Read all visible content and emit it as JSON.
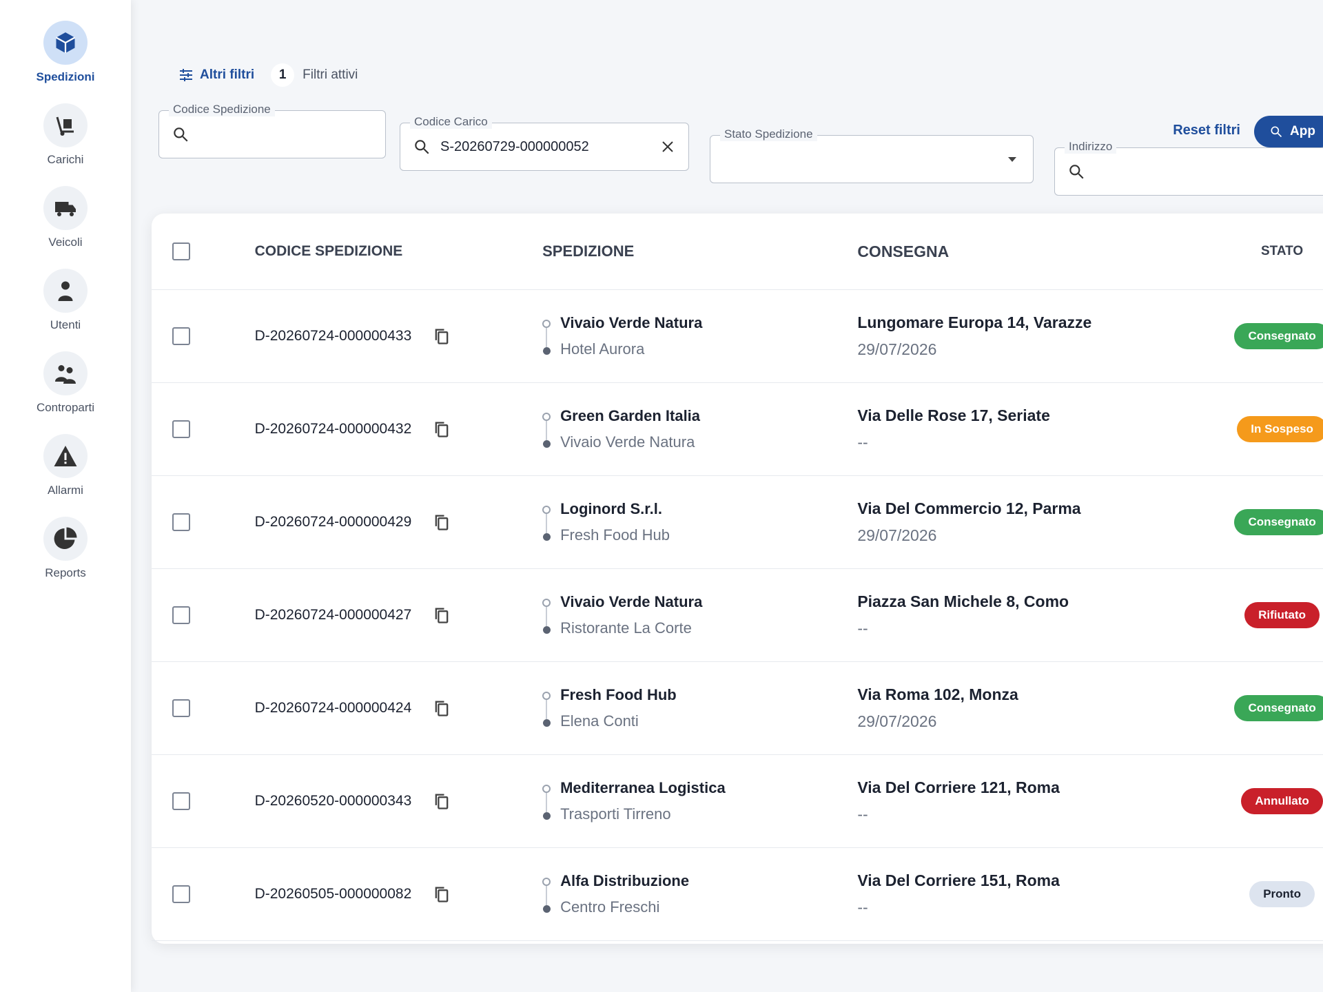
{
  "sidebar": {
    "items": [
      {
        "label": "Spedizioni",
        "active": true
      },
      {
        "label": "Carichi"
      },
      {
        "label": "Veicoli"
      },
      {
        "label": "Utenti"
      },
      {
        "label": "Controparti"
      },
      {
        "label": "Allarmi"
      },
      {
        "label": "Reports"
      }
    ]
  },
  "toolbar": {
    "more_filters": "Altri filtri",
    "active_count": 1,
    "active_label": "Filtri attivi"
  },
  "filters": {
    "fields": [
      {
        "label": "Codice Spedizione",
        "kind": "search"
      },
      {
        "label": "Codice Carico",
        "kind": "search",
        "value": "S-20260729-000000052"
      },
      {
        "label": "Stato Spedizione",
        "kind": "select"
      },
      {
        "label": "Indirizzo",
        "kind": "search"
      }
    ],
    "reset": "Reset filtri",
    "apply": "App"
  },
  "table": {
    "columns": [
      "CODICE SPEDIZIONE",
      "SPEDIZIONE",
      "CONSEGNA",
      "STATO"
    ],
    "rows": [
      {
        "code": "D-20260724-000000433",
        "sender": "Vivaio Verde Natura",
        "receiver": "Hotel Aurora",
        "address": "Lungomare Europa 14, Varazze",
        "date": "29/07/2026",
        "status": "Consegnato",
        "status_color": "#3aa757"
      },
      {
        "code": "D-20260724-000000432",
        "sender": "Green Garden Italia",
        "receiver": "Vivaio Verde Natura",
        "address": "Via Delle Rose 17, Seriate",
        "date": "--",
        "status": "In Sospeso",
        "status_color": "#f59a1b"
      },
      {
        "code": "D-20260724-000000429",
        "sender": "Loginord S.r.l.",
        "receiver": "Fresh Food Hub",
        "address": "Via Del Commercio 12, Parma",
        "date": "29/07/2026",
        "status": "Consegnato",
        "status_color": "#3aa757"
      },
      {
        "code": "D-20260724-000000427",
        "sender": "Vivaio Verde Natura",
        "receiver": "Ristorante La Corte",
        "address": "Piazza San Michele 8, Como",
        "date": "--",
        "status": "Rifiutato",
        "status_color": "#c9202a"
      },
      {
        "code": "D-20260724-000000424",
        "sender": "Fresh Food Hub",
        "receiver": "Elena Conti",
        "address": "Via Roma 102, Monza",
        "date": "29/07/2026",
        "status": "Consegnato",
        "status_color": "#3aa757"
      },
      {
        "code": "D-20260520-000000343",
        "sender": "Mediterranea Logistica",
        "receiver": "Trasporti Tirreno",
        "address": "Via Del Corriere 121, Roma",
        "date": "--",
        "status": "Annullato",
        "status_color": "#c9202a"
      },
      {
        "code": "D-20260505-000000082",
        "sender": "Alfa Distribuzione",
        "receiver": "Centro Freschi",
        "address": "Via Del Corriere 151, Roma",
        "date": "--",
        "status": "Pronto",
        "status_color": "#dde4ef"
      }
    ]
  }
}
